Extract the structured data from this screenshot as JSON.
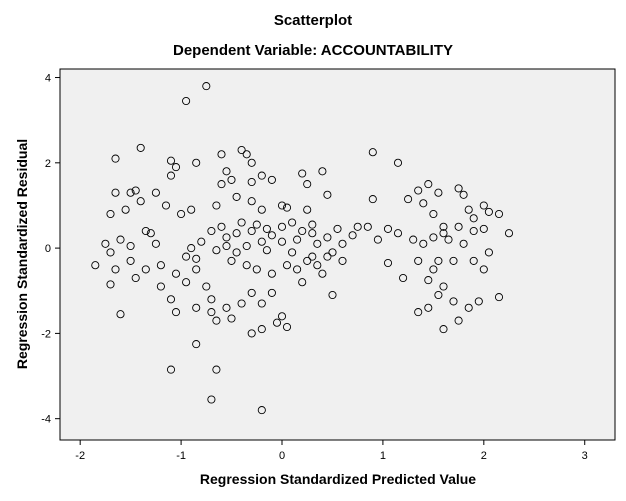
{
  "chart_data": {
    "type": "scatter",
    "title": "Scatterplot",
    "subtitle": "Dependent Variable: ACCOUNTABILITY",
    "xlabel": "Regression Standardized Predicted Value",
    "ylabel": "Regression Standardized Residual",
    "xlim": [
      -2.2,
      3.3
    ],
    "ylim": [
      -4.5,
      4.2
    ],
    "xticks": [
      "-2",
      "-1",
      "0",
      "1",
      "2",
      "3"
    ],
    "yticks": [
      "4",
      "2",
      "0",
      "-2",
      "-4"
    ],
    "grid": false,
    "marker": "open-circle",
    "plot_background": "#f0f0f0",
    "marker_color": "#000000",
    "points": [
      [
        -0.75,
        3.8
      ],
      [
        -0.95,
        3.45
      ],
      [
        -1.4,
        2.35
      ],
      [
        -1.65,
        2.1
      ],
      [
        -1.1,
        2.05
      ],
      [
        -1.05,
        1.9
      ],
      [
        -1.1,
        1.7
      ],
      [
        -0.85,
        2.0
      ],
      [
        -0.6,
        2.2
      ],
      [
        -0.4,
        2.3
      ],
      [
        -0.35,
        2.2
      ],
      [
        -0.3,
        2.0
      ],
      [
        -0.55,
        1.8
      ],
      [
        -0.2,
        1.7
      ],
      [
        -0.6,
        1.5
      ],
      [
        -0.5,
        1.6
      ],
      [
        -0.3,
        1.55
      ],
      [
        -0.1,
        1.6
      ],
      [
        0.2,
        1.75
      ],
      [
        0.4,
        1.8
      ],
      [
        0.25,
        1.5
      ],
      [
        -1.65,
        1.3
      ],
      [
        -1.5,
        1.3
      ],
      [
        -1.45,
        1.35
      ],
      [
        -1.25,
        1.3
      ],
      [
        -1.4,
        1.1
      ],
      [
        -1.55,
        0.9
      ],
      [
        -1.7,
        0.8
      ],
      [
        -1.15,
        1.0
      ],
      [
        -1.0,
        0.8
      ],
      [
        -0.9,
        0.9
      ],
      [
        -0.65,
        1.0
      ],
      [
        -0.45,
        1.2
      ],
      [
        -0.3,
        1.1
      ],
      [
        -0.2,
        0.9
      ],
      [
        0.0,
        1.0
      ],
      [
        0.05,
        0.95
      ],
      [
        0.25,
        0.9
      ],
      [
        0.45,
        1.25
      ],
      [
        -1.35,
        0.4
      ],
      [
        -1.3,
        0.35
      ],
      [
        -1.25,
        0.1
      ],
      [
        -1.5,
        0.05
      ],
      [
        -1.6,
        0.2
      ],
      [
        -1.75,
        0.1
      ],
      [
        -1.7,
        -0.1
      ],
      [
        -1.85,
        -0.4
      ],
      [
        -1.65,
        -0.5
      ],
      [
        -1.5,
        -0.3
      ],
      [
        -1.35,
        -0.5
      ],
      [
        -1.45,
        -0.7
      ],
      [
        -1.2,
        -0.4
      ],
      [
        -1.05,
        -0.6
      ],
      [
        -0.95,
        -0.8
      ],
      [
        -1.1,
        -1.2
      ],
      [
        -1.05,
        -1.5
      ],
      [
        -1.2,
        -0.9
      ],
      [
        -1.6,
        -1.55
      ],
      [
        -1.7,
        -0.85
      ],
      [
        -0.85,
        -0.5
      ],
      [
        -0.75,
        -0.9
      ],
      [
        -0.7,
        -1.2
      ],
      [
        -0.7,
        -1.5
      ],
      [
        -0.65,
        -1.7
      ],
      [
        -0.85,
        -1.4
      ],
      [
        -0.55,
        -1.4
      ],
      [
        -0.5,
        -1.65
      ],
      [
        -0.4,
        -1.3
      ],
      [
        -0.3,
        -1.05
      ],
      [
        -0.2,
        -1.3
      ],
      [
        -0.1,
        -1.05
      ],
      [
        0.0,
        -1.6
      ],
      [
        0.05,
        -1.85
      ],
      [
        -0.05,
        -1.75
      ],
      [
        -0.2,
        -1.9
      ],
      [
        -0.3,
        -2.0
      ],
      [
        -0.85,
        -2.25
      ],
      [
        -1.1,
        -2.85
      ],
      [
        -0.65,
        -2.85
      ],
      [
        -0.7,
        -3.55
      ],
      [
        -0.2,
        -3.8
      ],
      [
        0.2,
        -0.8
      ],
      [
        0.4,
        -0.6
      ],
      [
        0.5,
        -1.1
      ],
      [
        0.3,
        -0.2
      ],
      [
        0.5,
        -0.1
      ],
      [
        0.6,
        0.1
      ],
      [
        0.7,
        0.3
      ],
      [
        0.75,
        0.5
      ],
      [
        0.55,
        0.45
      ],
      [
        0.45,
        0.25
      ],
      [
        0.3,
        0.35
      ],
      [
        0.15,
        0.2
      ],
      [
        0.0,
        0.15
      ],
      [
        -0.1,
        0.3
      ],
      [
        -0.2,
        0.15
      ],
      [
        -0.35,
        0.05
      ],
      [
        -0.45,
        -0.1
      ],
      [
        -0.55,
        0.25
      ],
      [
        -0.6,
        0.5
      ],
      [
        -0.7,
        0.4
      ],
      [
        -0.8,
        0.15
      ],
      [
        -0.9,
        0.0
      ],
      [
        -0.95,
        -0.2
      ],
      [
        -0.85,
        -0.25
      ],
      [
        -0.65,
        -0.05
      ],
      [
        -0.5,
        -0.3
      ],
      [
        -0.35,
        -0.4
      ],
      [
        -0.25,
        -0.5
      ],
      [
        -0.1,
        -0.6
      ],
      [
        0.05,
        -0.4
      ],
      [
        0.15,
        -0.5
      ],
      [
        0.25,
        -0.3
      ],
      [
        0.35,
        -0.4
      ],
      [
        0.45,
        -0.2
      ],
      [
        0.9,
        2.25
      ],
      [
        1.15,
        2.0
      ],
      [
        0.9,
        1.15
      ],
      [
        0.85,
        0.5
      ],
      [
        0.95,
        0.2
      ],
      [
        1.05,
        0.45
      ],
      [
        1.15,
        0.35
      ],
      [
        1.25,
        1.15
      ],
      [
        1.3,
        0.2
      ],
      [
        1.05,
        -0.35
      ],
      [
        1.2,
        -0.7
      ],
      [
        1.35,
        -0.3
      ],
      [
        1.4,
        0.1
      ],
      [
        1.5,
        0.25
      ],
      [
        1.6,
        0.35
      ],
      [
        1.65,
        0.2
      ],
      [
        1.75,
        0.5
      ],
      [
        1.8,
        0.1
      ],
      [
        1.9,
        0.4
      ],
      [
        2.0,
        0.45
      ],
      [
        2.05,
        -0.1
      ],
      [
        2.25,
        0.35
      ],
      [
        1.9,
        -0.3
      ],
      [
        2.0,
        -0.5
      ],
      [
        2.15,
        -1.15
      ],
      [
        1.95,
        -1.25
      ],
      [
        1.85,
        -1.4
      ],
      [
        1.7,
        -1.25
      ],
      [
        1.75,
        -1.7
      ],
      [
        1.6,
        -0.9
      ],
      [
        1.55,
        -1.1
      ],
      [
        1.45,
        -0.75
      ],
      [
        1.5,
        -0.5
      ],
      [
        1.6,
        -1.9
      ],
      [
        1.45,
        -1.4
      ],
      [
        1.35,
        -1.5
      ],
      [
        1.45,
        1.5
      ],
      [
        1.4,
        1.05
      ],
      [
        1.35,
        1.35
      ],
      [
        1.55,
        1.3
      ],
      [
        1.75,
        1.4
      ],
      [
        1.8,
        1.25
      ],
      [
        1.85,
        0.9
      ],
      [
        1.9,
        0.7
      ],
      [
        2.0,
        1.0
      ],
      [
        2.05,
        0.85
      ],
      [
        2.15,
        0.8
      ],
      [
        1.5,
        0.8
      ],
      [
        1.6,
        0.5
      ],
      [
        1.7,
        -0.3
      ],
      [
        1.55,
        -0.3
      ],
      [
        -0.4,
        0.6
      ],
      [
        -0.25,
        0.55
      ],
      [
        -0.15,
        0.45
      ],
      [
        0.0,
        0.5
      ],
      [
        0.1,
        0.6
      ],
      [
        0.2,
        0.4
      ],
      [
        0.3,
        0.55
      ],
      [
        -0.3,
        0.4
      ],
      [
        -0.45,
        0.35
      ],
      [
        -0.55,
        0.05
      ],
      [
        -0.15,
        -0.05
      ],
      [
        0.1,
        -0.1
      ],
      [
        0.6,
        -0.3
      ],
      [
        0.35,
        0.1
      ]
    ]
  }
}
